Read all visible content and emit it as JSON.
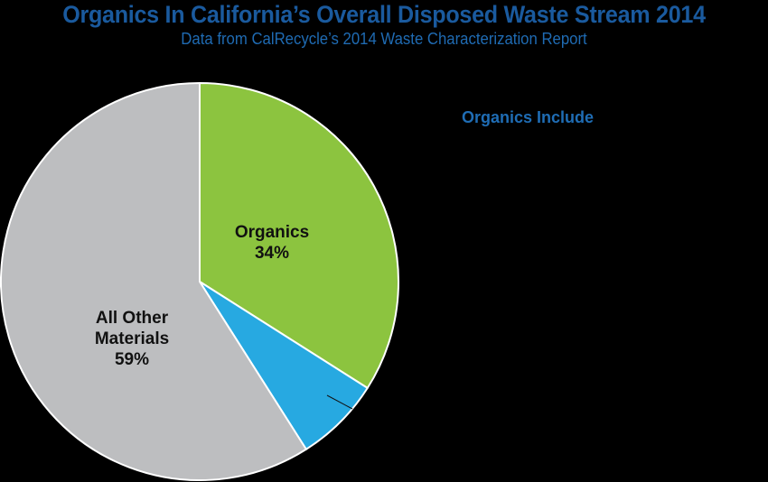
{
  "header": {
    "title": "Organics In California’s Overall Disposed Waste Stream 2014",
    "subtitle": "Data from CalRecycle’s 2014 Waste Characterization Report"
  },
  "side_panel": {
    "heading": "Organics Include"
  },
  "colors": {
    "title": "#1a5a9e",
    "subtitle": "#1f6bb3",
    "side_heading": "#1f6db5",
    "background": "#000000"
  },
  "chart_data": {
    "type": "pie",
    "title": "Organics In California’s Overall Disposed Waste Stream 2014",
    "subtitle": "Data from CalRecycle’s 2014 Waste Characterization Report",
    "start_angle": "12 o'clock, clockwise",
    "slices": [
      {
        "name": "Organics",
        "value": 34,
        "label": "34%",
        "color": "#8cc43f",
        "label_visible": true
      },
      {
        "name": "(unlabeled)",
        "value": 7,
        "label": "",
        "color": "#27a9e1",
        "label_visible": false,
        "has_leader_line": true
      },
      {
        "name": "All Other Materials",
        "value": 59,
        "label": "59%",
        "color": "#bdbec0",
        "label_visible": true
      }
    ],
    "legend": "none"
  },
  "labels": {
    "organics_name": "Organics",
    "organics_pct": "34%",
    "other_name_line1": "All Other",
    "other_name_line2": "Materials",
    "other_pct": "59%"
  }
}
